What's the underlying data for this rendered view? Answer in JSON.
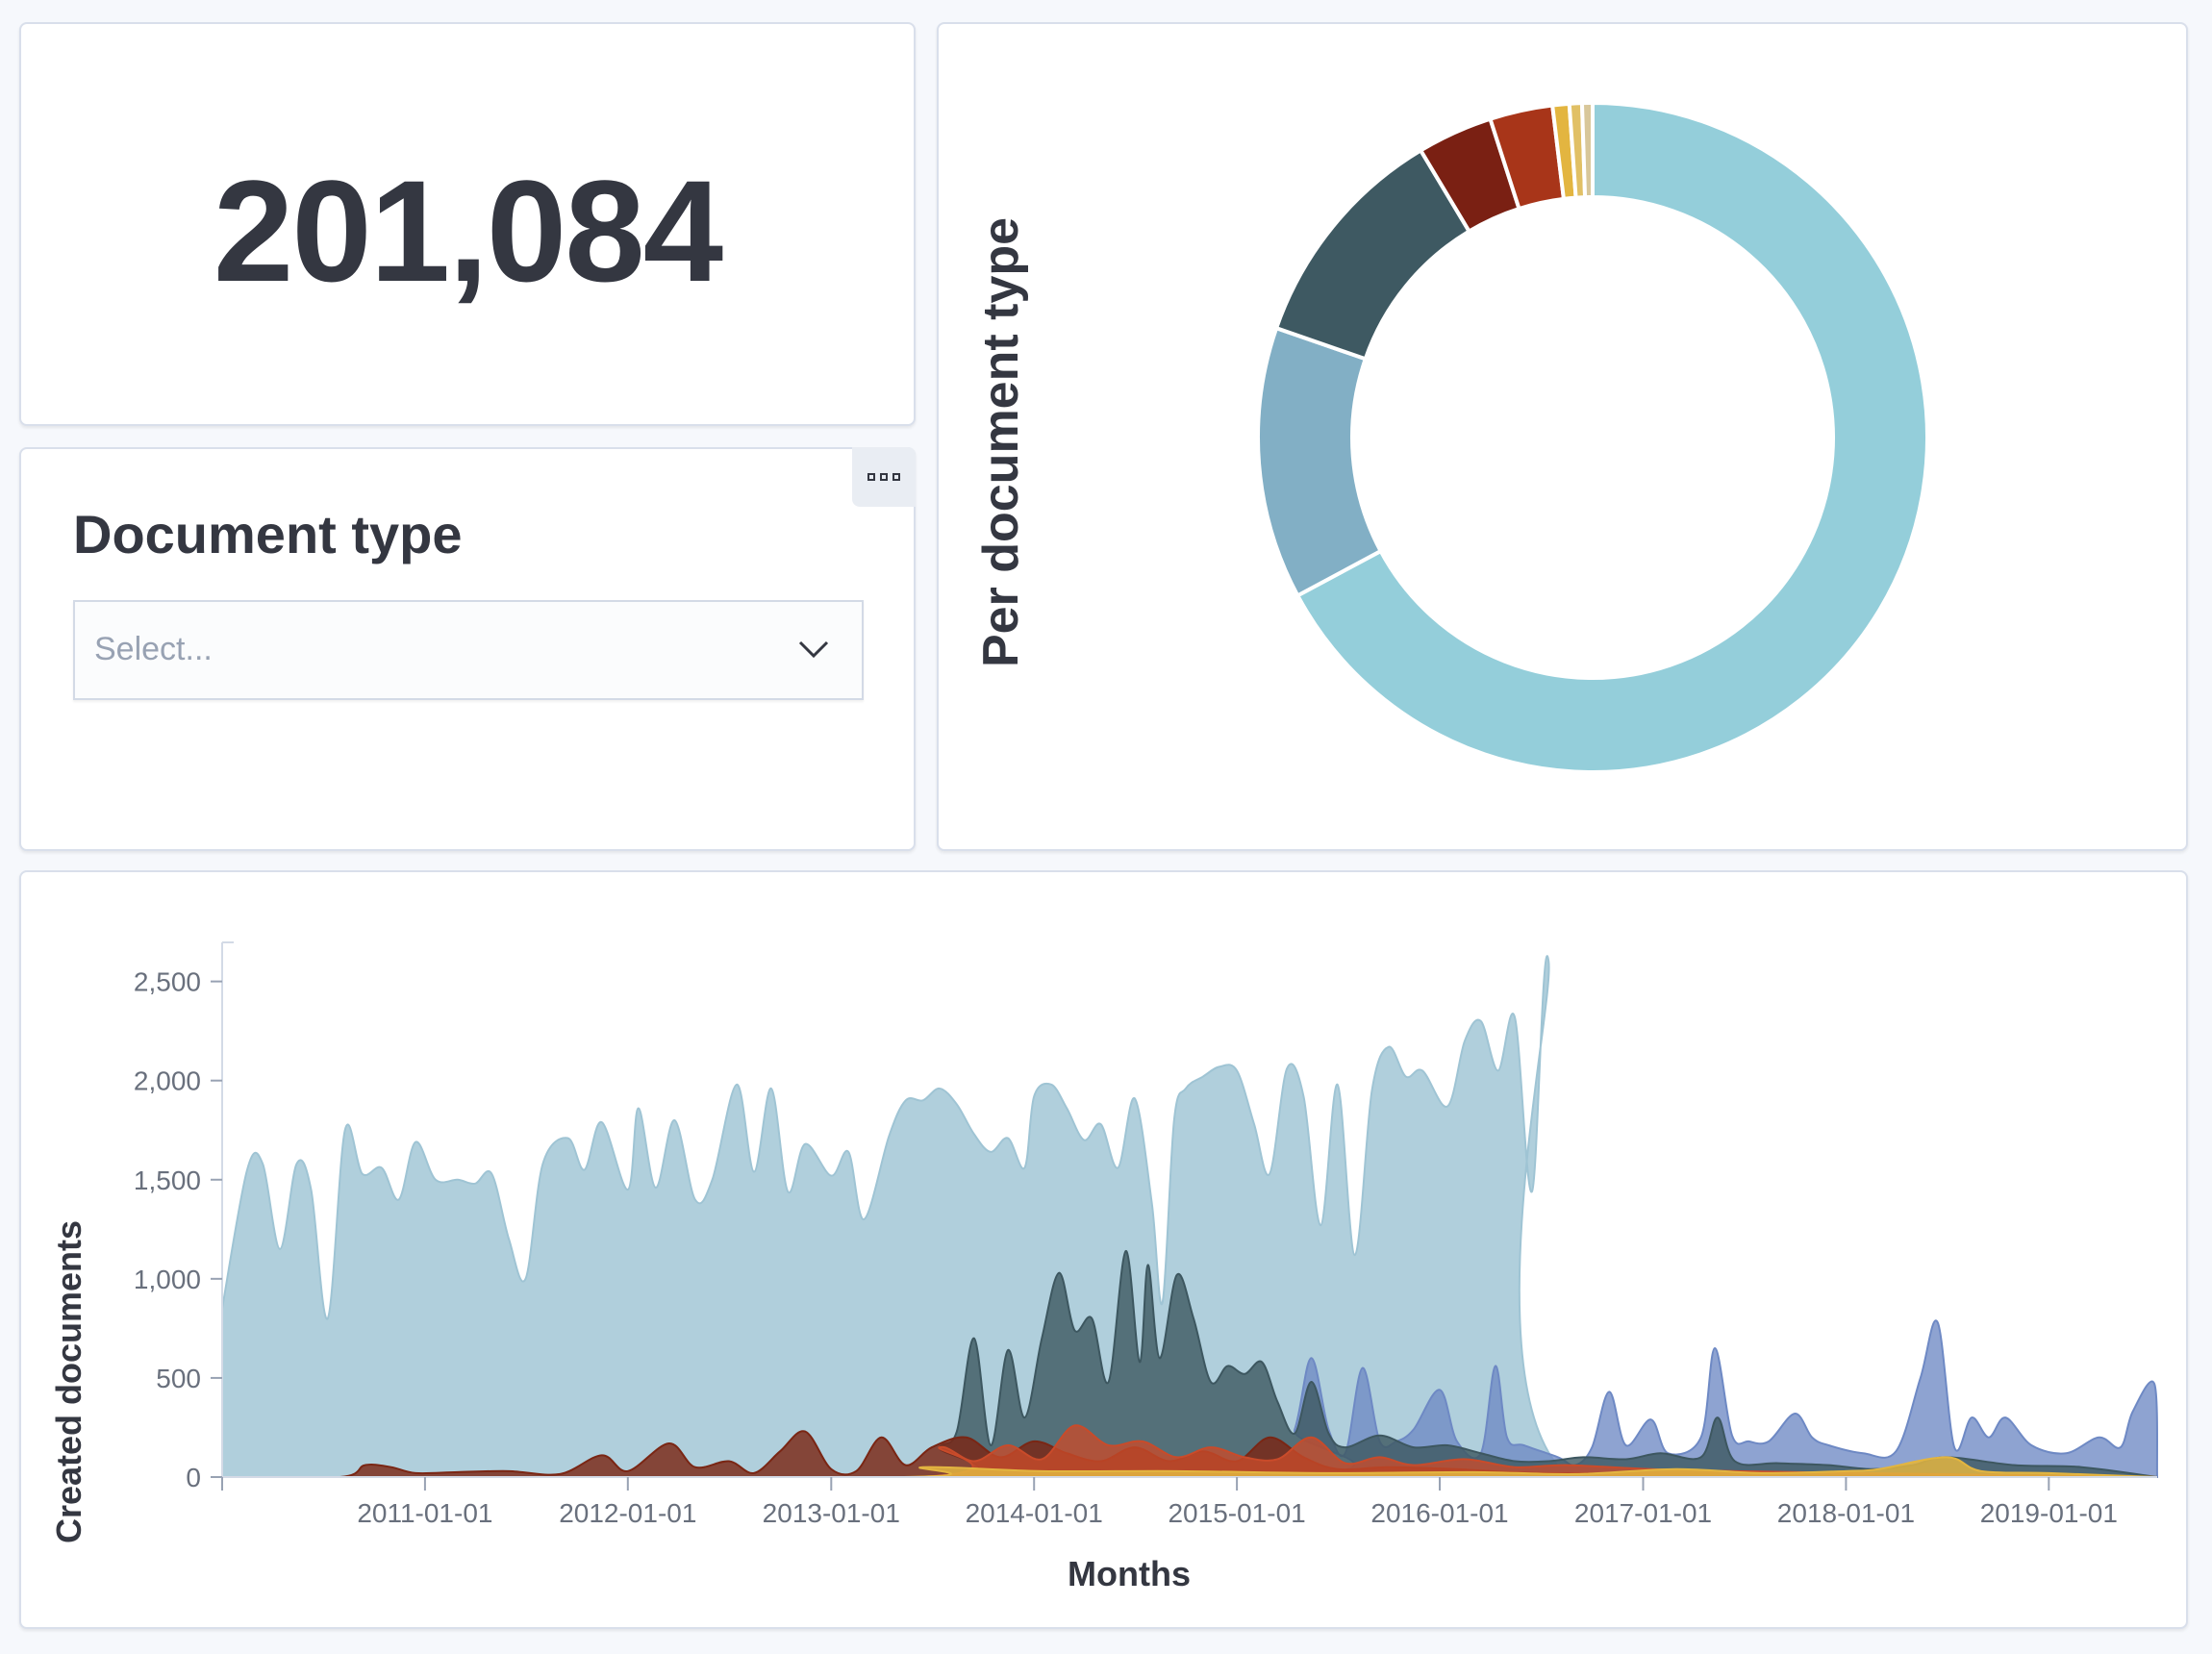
{
  "metric": {
    "value": "201,084"
  },
  "control": {
    "title": "Document type",
    "select_placeholder": "Select..."
  },
  "colors": {
    "light_blue": "#94ceda",
    "steel_blue": "#82afc5",
    "dark_slate": "#3e5962",
    "dark_red": "#7a2013",
    "red": "#a83519",
    "gold": "#e3b540",
    "tan": "#d8b878",
    "cornflower": "#6f8bc3"
  },
  "donut_chart": {
    "type": "pie",
    "title": "Per document type",
    "slices": [
      {
        "value": 66.5,
        "color": "#94ceda"
      },
      {
        "value": 13.0,
        "color": "#82afc5"
      },
      {
        "value": 11.0,
        "color": "#3e5962"
      },
      {
        "value": 3.6,
        "color": "#7a2013"
      },
      {
        "value": 3.0,
        "color": "#a83519"
      },
      {
        "value": 0.8,
        "color": "#e3b540"
      },
      {
        "value": 0.6,
        "color": "#e1c065"
      },
      {
        "value": 0.5,
        "color": "#d8c79a"
      }
    ]
  },
  "chart_data": {
    "type": "area",
    "xlabel": "Months",
    "ylabel": "Created documents",
    "ylim": [
      0,
      2600
    ],
    "yticks": [
      0,
      500,
      1000,
      1500,
      2000,
      2500
    ],
    "ytick_labels": [
      "0",
      "500",
      "1,000",
      "1,500",
      "2,000",
      "2,500"
    ],
    "x_range": [
      "2010-01-01",
      "2019-07-15"
    ],
    "xtick_labels": [
      "2011-01-01",
      "2012-01-01",
      "2013-01-01",
      "2014-01-01",
      "2015-01-01",
      "2016-01-01",
      "2017-01-01",
      "2018-01-01",
      "2019-01-01"
    ],
    "series": [
      {
        "color": "#9fc4d4",
        "opacity": 0.82,
        "points": [
          [
            "2010-01-01",
            850
          ],
          [
            "2010-02-15",
            1550
          ],
          [
            "2010-03-15",
            1580
          ],
          [
            "2010-04-15",
            1150
          ],
          [
            "2010-05-15",
            1580
          ],
          [
            "2010-06-10",
            1450
          ],
          [
            "2010-07-10",
            800
          ],
          [
            "2010-08-10",
            1750
          ],
          [
            "2010-09-10",
            1530
          ],
          [
            "2010-10-15",
            1560
          ],
          [
            "2010-11-15",
            1400
          ],
          [
            "2010-12-15",
            1690
          ],
          [
            "2011-01-20",
            1500
          ],
          [
            "2011-03-01",
            1500
          ],
          [
            "2011-04-01",
            1480
          ],
          [
            "2011-05-01",
            1530
          ],
          [
            "2011-06-01",
            1200
          ],
          [
            "2011-07-01",
            1000
          ],
          [
            "2011-08-01",
            1580
          ],
          [
            "2011-09-15",
            1710
          ],
          [
            "2011-10-15",
            1550
          ],
          [
            "2011-11-15",
            1790
          ],
          [
            "2012-01-01",
            1450
          ],
          [
            "2012-01-20",
            1860
          ],
          [
            "2012-02-20",
            1460
          ],
          [
            "2012-03-25",
            1800
          ],
          [
            "2012-05-01",
            1400
          ],
          [
            "2012-06-01",
            1500
          ],
          [
            "2012-07-15",
            1980
          ],
          [
            "2012-08-15",
            1540
          ],
          [
            "2012-09-15",
            1960
          ],
          [
            "2012-10-15",
            1440
          ],
          [
            "2012-11-15",
            1680
          ],
          [
            "2013-01-01",
            1520
          ],
          [
            "2013-02-01",
            1640
          ],
          [
            "2013-03-01",
            1300
          ],
          [
            "2013-04-15",
            1720
          ],
          [
            "2013-05-15",
            1900
          ],
          [
            "2013-06-15",
            1900
          ],
          [
            "2013-07-15",
            1960
          ],
          [
            "2013-08-15",
            1880
          ],
          [
            "2013-09-15",
            1730
          ],
          [
            "2013-10-15",
            1640
          ],
          [
            "2013-11-15",
            1710
          ],
          [
            "2013-12-15",
            1560
          ],
          [
            "2014-01-01",
            1920
          ],
          [
            "2014-02-01",
            1980
          ],
          [
            "2014-03-01",
            1860
          ],
          [
            "2014-04-01",
            1700
          ],
          [
            "2014-05-01",
            1780
          ],
          [
            "2014-06-01",
            1560
          ],
          [
            "2014-07-01",
            1910
          ],
          [
            "2014-08-01",
            1380
          ],
          [
            "2014-08-20",
            880
          ],
          [
            "2014-09-10",
            1800
          ],
          [
            "2014-10-01",
            1960
          ],
          [
            "2014-11-01",
            2020
          ],
          [
            "2014-12-01",
            2070
          ],
          [
            "2015-01-01",
            2050
          ],
          [
            "2015-02-01",
            1780
          ],
          [
            "2015-03-01",
            1530
          ],
          [
            "2015-04-01",
            2060
          ],
          [
            "2015-05-01",
            1920
          ],
          [
            "2015-06-01",
            1270
          ],
          [
            "2015-07-01",
            1980
          ],
          [
            "2015-08-01",
            1120
          ],
          [
            "2015-09-01",
            1950
          ],
          [
            "2015-10-01",
            2170
          ],
          [
            "2015-11-01",
            2020
          ],
          [
            "2015-12-01",
            2050
          ],
          [
            "2016-01-15",
            1870
          ],
          [
            "2016-02-15",
            2200
          ],
          [
            "2016-03-15",
            2300
          ],
          [
            "2016-04-15",
            2050
          ],
          [
            "2016-05-15",
            2320
          ],
          [
            "2016-06-15",
            1440
          ],
          [
            "2016-07-15",
            2600
          ],
          [
            "2016-08-20",
            0
          ],
          [
            "2019-07-15",
            0
          ]
        ]
      },
      {
        "color": "#6e89c4",
        "opacity": 0.78,
        "points": [
          [
            "2010-01-01",
            0
          ],
          [
            "2015-03-01",
            0
          ],
          [
            "2015-04-15",
            240
          ],
          [
            "2015-05-15",
            600
          ],
          [
            "2015-06-15",
            240
          ],
          [
            "2015-07-15",
            120
          ],
          [
            "2015-08-15",
            550
          ],
          [
            "2015-09-15",
            180
          ],
          [
            "2015-10-15",
            180
          ],
          [
            "2015-11-15",
            240
          ],
          [
            "2016-01-01",
            440
          ],
          [
            "2016-02-01",
            180
          ],
          [
            "2016-03-15",
            120
          ],
          [
            "2016-04-10",
            560
          ],
          [
            "2016-05-01",
            200
          ],
          [
            "2016-06-01",
            160
          ],
          [
            "2016-08-01",
            100
          ],
          [
            "2016-09-01",
            60
          ],
          [
            "2016-10-01",
            150
          ],
          [
            "2016-11-01",
            430
          ],
          [
            "2016-12-01",
            160
          ],
          [
            "2017-01-15",
            290
          ],
          [
            "2017-02-15",
            120
          ],
          [
            "2017-04-15",
            200
          ],
          [
            "2017-05-10",
            650
          ],
          [
            "2017-06-10",
            210
          ],
          [
            "2017-07-10",
            180
          ],
          [
            "2017-08-15",
            180
          ],
          [
            "2017-10-01",
            320
          ],
          [
            "2017-11-01",
            200
          ],
          [
            "2017-12-01",
            160
          ],
          [
            "2018-02-01",
            120
          ],
          [
            "2018-04-01",
            130
          ],
          [
            "2018-05-15",
            500
          ],
          [
            "2018-06-15",
            780
          ],
          [
            "2018-07-15",
            150
          ],
          [
            "2018-08-15",
            300
          ],
          [
            "2018-09-15",
            200
          ],
          [
            "2018-10-15",
            300
          ],
          [
            "2018-12-01",
            160
          ],
          [
            "2019-02-01",
            120
          ],
          [
            "2019-04-01",
            200
          ],
          [
            "2019-05-10",
            150
          ],
          [
            "2019-06-01",
            330
          ],
          [
            "2019-07-10",
            470
          ],
          [
            "2019-07-15",
            0
          ]
        ]
      },
      {
        "color": "#3d5760",
        "opacity": 0.8,
        "points": [
          [
            "2010-01-01",
            0
          ],
          [
            "2013-06-15",
            0
          ],
          [
            "2013-07-15",
            150
          ],
          [
            "2013-08-15",
            230
          ],
          [
            "2013-09-15",
            700
          ],
          [
            "2013-10-15",
            160
          ],
          [
            "2013-11-15",
            640
          ],
          [
            "2013-12-15",
            300
          ],
          [
            "2014-01-15",
            700
          ],
          [
            "2014-02-15",
            1030
          ],
          [
            "2014-03-15",
            740
          ],
          [
            "2014-04-15",
            800
          ],
          [
            "2014-05-15",
            480
          ],
          [
            "2014-06-15",
            1140
          ],
          [
            "2014-07-10",
            580
          ],
          [
            "2014-07-25",
            1070
          ],
          [
            "2014-08-15",
            600
          ],
          [
            "2014-09-15",
            1020
          ],
          [
            "2014-10-15",
            800
          ],
          [
            "2014-11-15",
            480
          ],
          [
            "2014-12-15",
            560
          ],
          [
            "2015-01-15",
            520
          ],
          [
            "2015-02-15",
            580
          ],
          [
            "2015-03-15",
            380
          ],
          [
            "2015-04-15",
            220
          ],
          [
            "2015-05-15",
            480
          ],
          [
            "2015-06-15",
            220
          ],
          [
            "2015-07-15",
            150
          ],
          [
            "2015-09-15",
            210
          ],
          [
            "2015-11-15",
            150
          ],
          [
            "2016-01-15",
            160
          ],
          [
            "2016-03-15",
            120
          ],
          [
            "2016-05-15",
            80
          ],
          [
            "2016-07-15",
            80
          ],
          [
            "2016-09-15",
            100
          ],
          [
            "2016-12-01",
            90
          ],
          [
            "2017-02-01",
            120
          ],
          [
            "2017-04-15",
            100
          ],
          [
            "2017-05-15",
            300
          ],
          [
            "2017-06-15",
            80
          ],
          [
            "2017-09-01",
            70
          ],
          [
            "2017-12-01",
            60
          ],
          [
            "2018-02-15",
            40
          ],
          [
            "2018-05-01",
            60
          ],
          [
            "2018-07-01",
            100
          ],
          [
            "2018-11-01",
            60
          ],
          [
            "2019-03-01",
            50
          ],
          [
            "2019-07-15",
            0
          ]
        ]
      },
      {
        "color": "#7a2614",
        "opacity": 0.82,
        "points": [
          [
            "2010-01-01",
            0
          ],
          [
            "2010-08-01",
            0
          ],
          [
            "2010-09-15",
            60
          ],
          [
            "2010-11-01",
            50
          ],
          [
            "2010-12-15",
            20
          ],
          [
            "2011-03-01",
            25
          ],
          [
            "2011-06-01",
            30
          ],
          [
            "2011-09-01",
            15
          ],
          [
            "2011-11-15",
            110
          ],
          [
            "2012-01-01",
            30
          ],
          [
            "2012-03-15",
            170
          ],
          [
            "2012-05-01",
            50
          ],
          [
            "2012-07-01",
            80
          ],
          [
            "2012-08-15",
            20
          ],
          [
            "2012-10-01",
            130
          ],
          [
            "2012-11-15",
            230
          ],
          [
            "2013-01-01",
            40
          ],
          [
            "2013-02-15",
            30
          ],
          [
            "2013-04-01",
            200
          ],
          [
            "2013-05-15",
            60
          ],
          [
            "2013-07-01",
            150
          ],
          [
            "2013-09-01",
            200
          ],
          [
            "2013-11-01",
            100
          ],
          [
            "2014-01-01",
            180
          ],
          [
            "2014-03-01",
            120
          ],
          [
            "2014-05-01",
            80
          ],
          [
            "2014-07-01",
            150
          ],
          [
            "2014-09-01",
            80
          ],
          [
            "2014-11-01",
            130
          ],
          [
            "2015-01-01",
            80
          ],
          [
            "2015-03-01",
            200
          ],
          [
            "2015-05-01",
            100
          ],
          [
            "2015-07-01",
            40
          ],
          [
            "2015-10-01",
            50
          ],
          [
            "2016-02-01",
            40
          ],
          [
            "2016-07-01",
            20
          ],
          [
            "2017-06-01",
            20
          ],
          [
            "2018-06-01",
            15
          ],
          [
            "2019-07-15",
            0
          ]
        ]
      },
      {
        "color": "#c94b2a",
        "opacity": 0.78,
        "points": [
          [
            "2010-01-01",
            0
          ],
          [
            "2013-06-01",
            0
          ],
          [
            "2013-07-15",
            150
          ],
          [
            "2013-09-15",
            80
          ],
          [
            "2013-11-15",
            160
          ],
          [
            "2014-01-15",
            90
          ],
          [
            "2014-03-15",
            260
          ],
          [
            "2014-05-15",
            160
          ],
          [
            "2014-07-15",
            180
          ],
          [
            "2014-09-15",
            100
          ],
          [
            "2014-11-15",
            150
          ],
          [
            "2015-01-15",
            100
          ],
          [
            "2015-03-15",
            90
          ],
          [
            "2015-05-15",
            200
          ],
          [
            "2015-07-15",
            70
          ],
          [
            "2015-09-15",
            100
          ],
          [
            "2015-11-15",
            60
          ],
          [
            "2016-02-15",
            90
          ],
          [
            "2016-05-15",
            50
          ],
          [
            "2016-08-15",
            60
          ],
          [
            "2017-01-15",
            40
          ],
          [
            "2017-06-15",
            30
          ],
          [
            "2018-01-15",
            20
          ],
          [
            "2019-07-15",
            0
          ]
        ]
      },
      {
        "color": "#e3b540",
        "opacity": 0.85,
        "points": [
          [
            "2010-01-01",
            0
          ],
          [
            "2013-05-01",
            0
          ],
          [
            "2013-06-15",
            50
          ],
          [
            "2014-01-15",
            30
          ],
          [
            "2014-09-15",
            30
          ],
          [
            "2015-06-01",
            20
          ],
          [
            "2016-03-01",
            25
          ],
          [
            "2016-09-01",
            15
          ],
          [
            "2017-03-01",
            40
          ],
          [
            "2017-08-01",
            20
          ],
          [
            "2018-01-01",
            30
          ],
          [
            "2018-03-01",
            40
          ],
          [
            "2018-07-01",
            100
          ],
          [
            "2018-09-01",
            30
          ],
          [
            "2019-01-01",
            20
          ],
          [
            "2019-07-15",
            0
          ]
        ]
      }
    ]
  }
}
